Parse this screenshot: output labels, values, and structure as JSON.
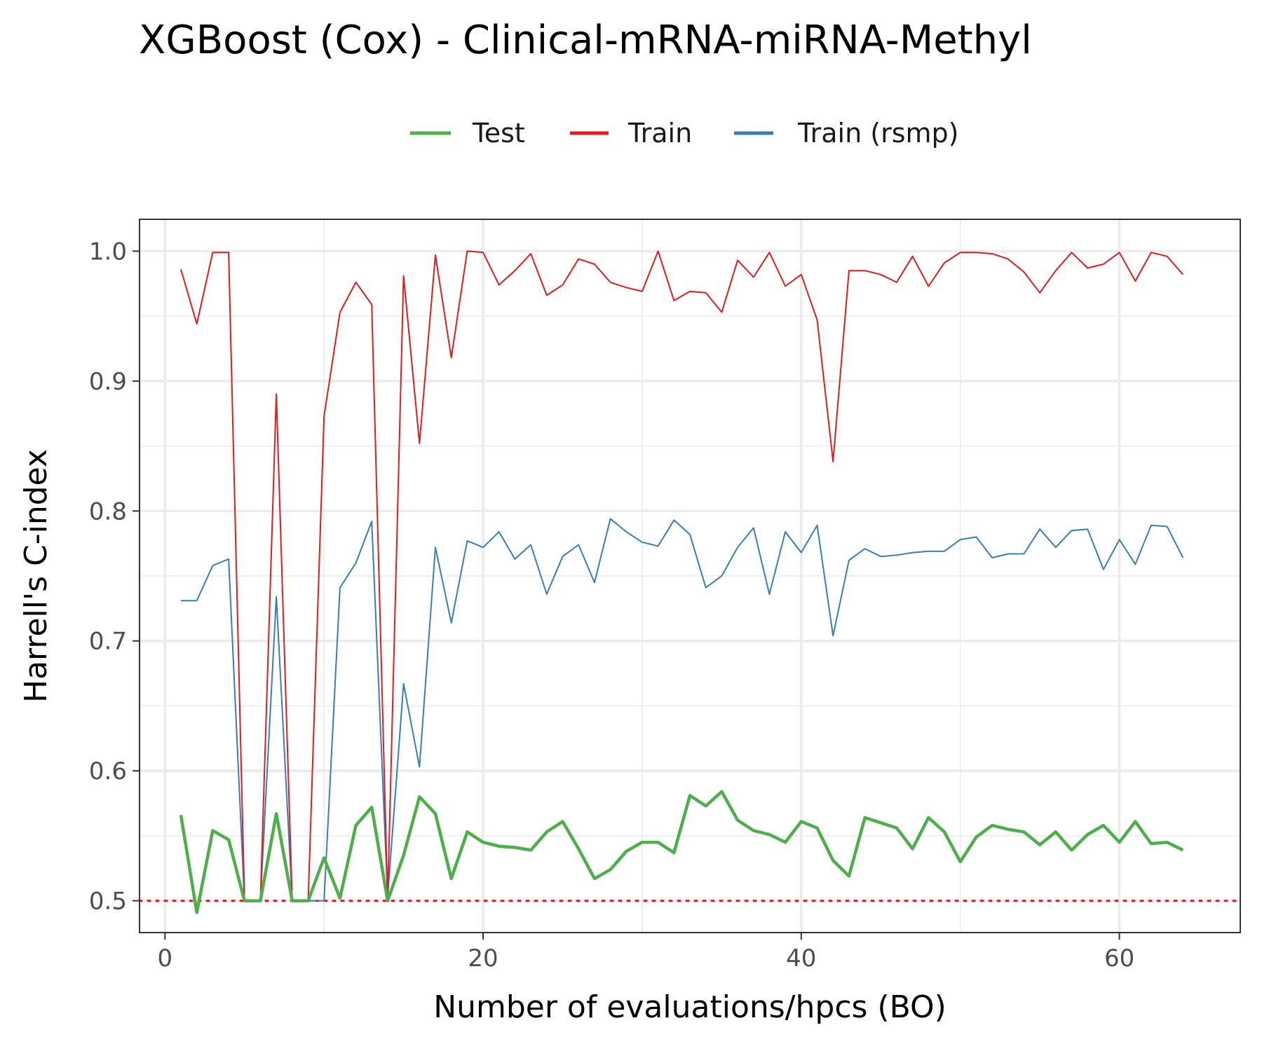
{
  "chart_data": {
    "type": "line",
    "title": "XGBoost (Cox) - Clinical-mRNA-miRNA-Methyl",
    "xlabel": "Number of evaluations/hpcs (BO)",
    "ylabel": "Harrell's C-index",
    "xlim": [
      -1.6,
      67.6
    ],
    "ylim": [
      0.4755,
      1.0245
    ],
    "xticks": [
      0,
      20,
      40,
      60
    ],
    "yticks": [
      0.5,
      0.6,
      0.7,
      0.8,
      0.9,
      1.0
    ],
    "xtick_labels": [
      "0",
      "20",
      "40",
      "60"
    ],
    "ytick_labels": [
      "0.5",
      "0.6",
      "0.7",
      "0.8",
      "0.9",
      "1.0"
    ],
    "grid": true,
    "legend_position": "top",
    "reference_line": {
      "y": 0.5,
      "style": "dotted",
      "color": "#e41a1c"
    },
    "x": [
      1,
      2,
      3,
      4,
      5,
      6,
      7,
      8,
      9,
      10,
      11,
      12,
      13,
      14,
      15,
      16,
      17,
      18,
      19,
      20,
      21,
      22,
      23,
      24,
      25,
      26,
      27,
      28,
      29,
      30,
      31,
      32,
      33,
      34,
      35,
      36,
      37,
      38,
      39,
      40,
      41,
      42,
      43,
      44,
      45,
      46,
      47,
      48,
      49,
      50,
      51,
      52,
      53,
      54,
      55,
      56,
      57,
      58,
      59,
      60,
      61,
      62,
      63,
      64
    ],
    "series": [
      {
        "name": "Test",
        "color": "#4daf4a",
        "values": [
          0.566,
          0.491,
          0.554,
          0.547,
          0.5,
          0.5,
          0.567,
          0.5,
          0.5,
          0.533,
          0.502,
          0.558,
          0.572,
          0.5,
          0.535,
          0.58,
          0.567,
          0.517,
          0.553,
          0.545,
          0.542,
          0.541,
          0.539,
          0.553,
          0.561,
          0.54,
          0.517,
          0.524,
          0.538,
          0.545,
          0.545,
          0.537,
          0.581,
          0.573,
          0.584,
          0.562,
          0.554,
          0.551,
          0.545,
          0.561,
          0.556,
          0.531,
          0.519,
          0.564,
          0.56,
          0.556,
          0.54,
          0.564,
          0.553,
          0.53,
          0.549,
          0.558,
          0.555,
          0.553,
          0.543,
          0.553,
          0.539,
          0.551,
          0.558,
          0.545,
          0.561,
          0.544,
          0.545,
          0.539
        ]
      },
      {
        "name": "Train",
        "color": "#e41a1c",
        "values": [
          0.986,
          0.944,
          0.999,
          0.999,
          0.5,
          0.5,
          0.89,
          0.5,
          0.5,
          0.873,
          0.953,
          0.976,
          0.959,
          0.5,
          0.981,
          0.852,
          0.997,
          0.918,
          1.0,
          0.999,
          0.974,
          0.985,
          0.998,
          0.966,
          0.974,
          0.994,
          0.99,
          0.976,
          0.972,
          0.969,
          1.0,
          0.962,
          0.969,
          0.968,
          0.953,
          0.993,
          0.98,
          0.999,
          0.973,
          0.982,
          0.947,
          0.838,
          0.985,
          0.985,
          0.982,
          0.976,
          0.996,
          0.973,
          0.991,
          0.999,
          0.999,
          0.998,
          0.994,
          0.984,
          0.968,
          0.985,
          0.999,
          0.987,
          0.99,
          0.999,
          0.977,
          0.999,
          0.996,
          0.982
        ]
      },
      {
        "name": "Train (rsmp)",
        "color": "#377eb8",
        "values": [
          0.731,
          0.731,
          0.758,
          0.763,
          0.5,
          0.5,
          0.734,
          0.5,
          0.5,
          0.5,
          0.741,
          0.76,
          0.792,
          0.503,
          0.667,
          0.603,
          0.772,
          0.714,
          0.777,
          0.772,
          0.784,
          0.763,
          0.774,
          0.736,
          0.765,
          0.774,
          0.745,
          0.794,
          0.784,
          0.776,
          0.773,
          0.793,
          0.782,
          0.741,
          0.75,
          0.772,
          0.787,
          0.736,
          0.784,
          0.768,
          0.789,
          0.704,
          0.762,
          0.771,
          0.765,
          0.766,
          0.768,
          0.769,
          0.769,
          0.778,
          0.78,
          0.764,
          0.767,
          0.767,
          0.786,
          0.772,
          0.785,
          0.786,
          0.755,
          0.778,
          0.759,
          0.789,
          0.788,
          0.764
        ]
      }
    ]
  }
}
